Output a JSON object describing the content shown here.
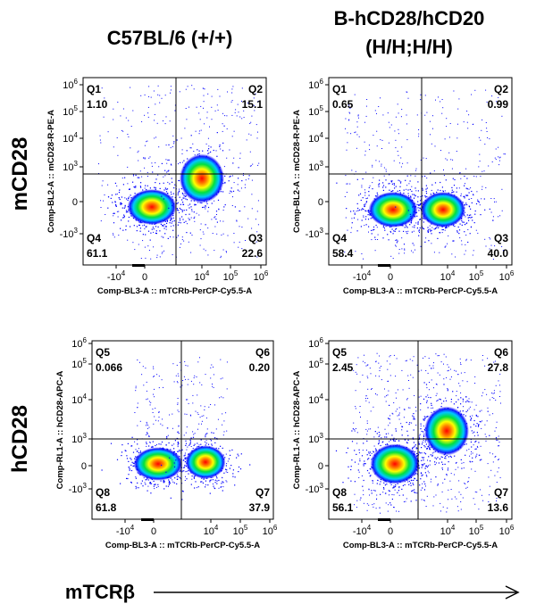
{
  "column_titles": [
    "C57BL/6 (+/+)",
    "B-hCD28/hCD20",
    "(H/H;H/H)"
  ],
  "row_labels": [
    "mCD28",
    "hCD28"
  ],
  "bottom_label": "mTCRβ",
  "colors": {
    "axis": "#000000",
    "density_low": "#0000ff",
    "density_high": "#ff0000"
  },
  "chart_data": [
    {
      "type": "scatter",
      "title": "C57BL/6 (+/+) mCD28",
      "xlabel": "Comp-BL3-A :: mTCRb-PerCP-Cy5.5-A",
      "ylabel": "Comp-BL2-A :: mCD28-R-PE-A",
      "xticks": [
        "-10^4",
        "0",
        "10^4",
        "10^5",
        "10^6"
      ],
      "yticks": [
        "10^6",
        "10^5",
        "10^4",
        "10^3",
        "0",
        "-10^3"
      ],
      "quadrants": [
        {
          "name": "Q1",
          "value": "1.10"
        },
        {
          "name": "Q2",
          "value": "15.1"
        },
        {
          "name": "Q3",
          "value": "22.6"
        },
        {
          "name": "Q4",
          "value": "61.1"
        }
      ]
    },
    {
      "type": "scatter",
      "title": "B-hCD28/hCD20 (H/H;H/H) mCD28",
      "xlabel": "Comp-BL3-A :: mTCRb-PerCP-Cy5.5-A",
      "ylabel": "Comp-BL2-A :: mCD28-R-PE-A",
      "xticks": [
        "-10^4",
        "0",
        "10^4",
        "10^5",
        "10^6"
      ],
      "yticks": [
        "10^6",
        "10^5",
        "10^4",
        "10^3",
        "0",
        "-10^3"
      ],
      "quadrants": [
        {
          "name": "Q1",
          "value": "0.65"
        },
        {
          "name": "Q2",
          "value": "0.99"
        },
        {
          "name": "Q3",
          "value": "40.0"
        },
        {
          "name": "Q4",
          "value": "58.4"
        }
      ]
    },
    {
      "type": "scatter",
      "title": "C57BL/6 (+/+) hCD28",
      "xlabel": "Comp-BL3-A :: mTCRb-PerCP-Cy5.5-A",
      "ylabel": "Comp-RL1-A :: hCD28-APC-A",
      "xticks": [
        "-10^4",
        "0",
        "10^4",
        "10^5",
        "10^6"
      ],
      "yticks": [
        "10^6",
        "10^5",
        "10^4",
        "10^3",
        "0",
        "-10^3"
      ],
      "quadrants": [
        {
          "name": "Q5",
          "value": "0.066"
        },
        {
          "name": "Q6",
          "value": "0.20"
        },
        {
          "name": "Q7",
          "value": "37.9"
        },
        {
          "name": "Q8",
          "value": "61.8"
        }
      ]
    },
    {
      "type": "scatter",
      "title": "B-hCD28/hCD20 (H/H;H/H) hCD28",
      "xlabel": "Comp-BL3-A :: mTCRb-PerCP-Cy5.5-A",
      "ylabel": "Comp-RL1-A :: hCD28-APC-A",
      "xticks": [
        "-10^4",
        "0",
        "10^4",
        "10^5",
        "10^6"
      ],
      "yticks": [
        "10^6",
        "10^5",
        "10^4",
        "10^3",
        "0",
        "-10^3"
      ],
      "quadrants": [
        {
          "name": "Q5",
          "value": "2.45"
        },
        {
          "name": "Q6",
          "value": "27.8"
        },
        {
          "name": "Q7",
          "value": "13.6"
        },
        {
          "name": "Q8",
          "value": "56.1"
        }
      ]
    }
  ]
}
